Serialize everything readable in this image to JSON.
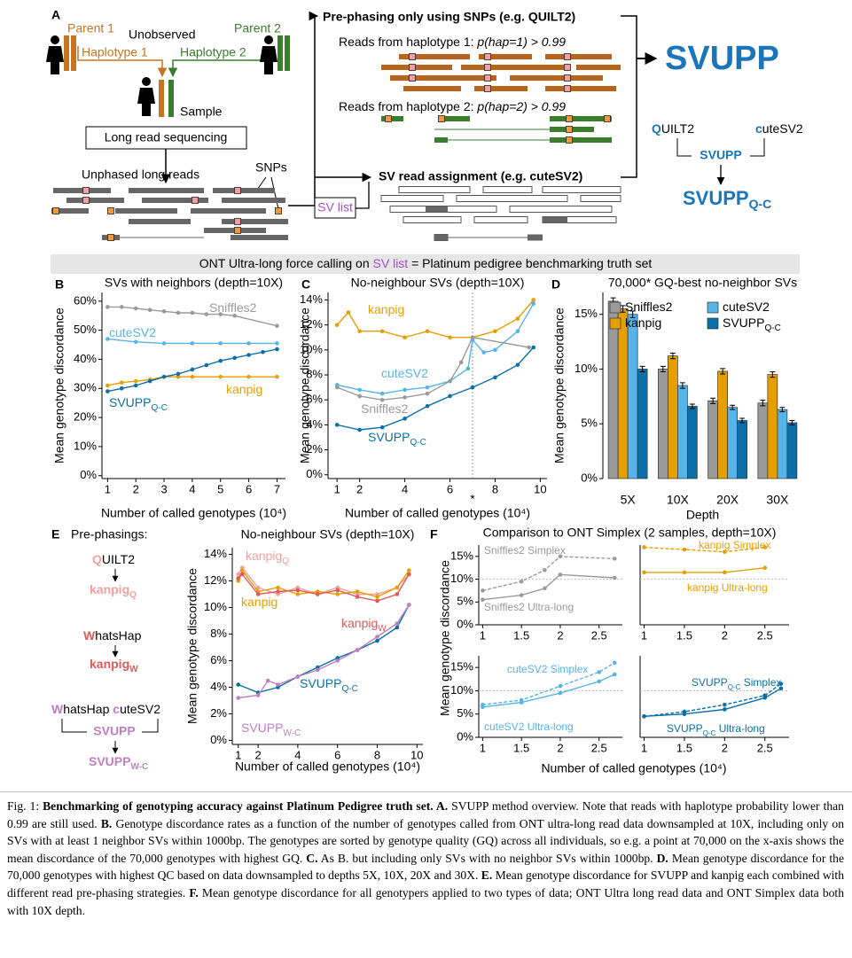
{
  "figure": {
    "panel_a": {
      "letter": "A",
      "parent1": "Parent 1",
      "unobserved": "Unobserved",
      "parent2": "Parent 2",
      "haplotype1": "Haplotype 1",
      "haplotype2": "Haplotype 2",
      "sample": "Sample",
      "sequencing": "Long read sequencing",
      "unphased": "Unphased long reads",
      "snps": "SNPs",
      "sv_list": "SV list",
      "prephasing_title": "Pre-phasing only using SNPs (e.g. QUILT2)",
      "reads_hap1": "Reads from haplotype 1: ",
      "reads_hap1_p": "p(hap=1) > 0.99",
      "reads_hap2": "Reads from haplotype 2: ",
      "reads_hap2_p": "p(hap=2) > 0.99",
      "assignment_title": "SV read assignment (e.g. cuteSV2)",
      "svupp": "SVUPP",
      "quilt_initial": "Q",
      "quilt_rest": "UILT2",
      "cute_initial": "c",
      "cute_rest": "uteSV2",
      "combined": "SVUPP",
      "combined_sub": "Q-C"
    },
    "banner": [
      "ONT Ultra-long force calling on ",
      "SV list",
      " = Platinum pedigree benchmarking truth set"
    ],
    "letters": {
      "B": "B",
      "C": "C",
      "D": "D",
      "E": "E",
      "F": "F"
    },
    "panel_e": {
      "heading": "Pre-phasings:",
      "q_initial": "Q",
      "q_rest": "UILT2",
      "kanpig_q": "kanpig",
      "kanpig_q_sub": "Q",
      "w_initial": "W",
      "w_rest": "hatsHap",
      "kanpig_w": "kanpig",
      "kanpig_w_sub": "W",
      "w2_initial": "W",
      "w2_rest": "hatsHap ",
      "c_initial": "c",
      "c_rest": "uteSV2",
      "svupp": "SVUPP",
      "svupp_wc": "SVUPP",
      "svupp_wc_sub": "W-C"
    }
  },
  "chart_data": [
    {
      "panel": "B",
      "type": "line",
      "title": "SVs with neighbors (depth=10X)",
      "ylabel": "Mean genotype discordance",
      "xlabel": "Number of called genotypes (10⁴)",
      "xlim": [
        0.8,
        7.3
      ],
      "xticks": [
        1,
        2,
        3,
        4,
        5,
        6,
        7
      ],
      "ylim": [
        -1,
        63
      ],
      "yticks": [
        {
          "value": 0,
          "label": "0%"
        },
        {
          "value": 10,
          "label": "10%"
        },
        {
          "value": 20,
          "label": "20%"
        },
        {
          "value": 30,
          "label": "30%"
        },
        {
          "value": 40,
          "label": "40%"
        },
        {
          "value": 50,
          "label": "50%"
        },
        {
          "value": 60,
          "label": "60%"
        }
      ],
      "series": [
        {
          "name": "Sniffles2",
          "color": "#9a9a9a",
          "x": [
            1,
            1.5,
            2,
            2.5,
            3,
            3.5,
            4,
            4.5,
            5,
            5.5,
            7
          ],
          "values": [
            58,
            58,
            57.5,
            57,
            56.5,
            56,
            56,
            55.5,
            55.5,
            55,
            51.5
          ]
        },
        {
          "name": "cuteSV2",
          "color": "#56b4e9",
          "x": [
            1,
            2,
            3,
            4,
            5,
            6,
            7
          ],
          "values": [
            47,
            46,
            45.5,
            45.5,
            45.5,
            45.5,
            45.5
          ]
        },
        {
          "name": "kanpig",
          "color": "#e69f00",
          "x": [
            1,
            1.5,
            2,
            2.5,
            3,
            3.5,
            4,
            5,
            6,
            7
          ],
          "values": [
            31,
            32,
            32.5,
            33,
            34,
            34,
            34,
            34,
            34,
            34
          ]
        },
        {
          "name": "SVUPP",
          "name_sub": "Q-C",
          "color": "#0a6fa8",
          "x": [
            1,
            1.5,
            2,
            2.5,
            3,
            3.5,
            4,
            4.5,
            5,
            5.5,
            6,
            6.5,
            7
          ],
          "values": [
            29,
            30,
            31,
            32.5,
            34,
            35,
            36.5,
            38,
            39.5,
            40.5,
            41.5,
            42.5,
            43.5
          ]
        }
      ]
    },
    {
      "panel": "C",
      "type": "line",
      "title": "No-neighbour SVs (depth=10X)",
      "ylabel": "Mean genotype discordance",
      "xlabel": "Number of called genotypes (10⁴)",
      "xlim": [
        0.6,
        10.3
      ],
      "xticks": [
        1,
        2,
        4,
        6,
        8,
        10
      ],
      "ylim": [
        -0.3,
        14.6
      ],
      "yticks": [
        {
          "value": 0,
          "label": "0%"
        },
        {
          "value": 2,
          "label": "2%"
        },
        {
          "value": 4,
          "label": "4%"
        },
        {
          "value": 6,
          "label": "6%"
        },
        {
          "value": 8,
          "label": "8%"
        },
        {
          "value": 10,
          "label": "10%"
        },
        {
          "value": 12,
          "label": "12%"
        },
        {
          "value": 14,
          "label": "14%"
        }
      ],
      "marker_x": 7,
      "marker_label": "*",
      "series": [
        {
          "name": "kanpig",
          "color": "#e69f00",
          "x": [
            1,
            1.5,
            2,
            3,
            4,
            5,
            6,
            7,
            8,
            9,
            9.7
          ],
          "values": [
            12,
            13,
            11.5,
            11.5,
            11,
            11.5,
            11,
            11,
            11.5,
            12.5,
            14
          ]
        },
        {
          "name": "cuteSV2",
          "color": "#56b4e9",
          "x": [
            1,
            2,
            3,
            4,
            5,
            6,
            6.8,
            7,
            7.5,
            8,
            9,
            9.7
          ],
          "values": [
            7.2,
            6.8,
            6.5,
            6.8,
            7,
            7.5,
            8.5,
            10.8,
            9.8,
            10,
            11.5,
            13.7
          ]
        },
        {
          "name": "Sniffles2",
          "color": "#9a9a9a",
          "x": [
            1,
            2,
            3,
            4,
            5,
            6,
            6.5,
            7,
            9.5
          ],
          "values": [
            7,
            6.3,
            6,
            6.2,
            6.5,
            7.5,
            9,
            11,
            10.2
          ]
        },
        {
          "name": "SVUPP",
          "name_sub": "Q-C",
          "color": "#0a6fa8",
          "x": [
            1,
            2,
            3,
            4,
            5,
            6,
            7,
            8,
            9,
            9.7
          ],
          "values": [
            4,
            3.6,
            3.8,
            4.5,
            5.5,
            6.3,
            7,
            7.8,
            8.8,
            10.2
          ]
        }
      ]
    },
    {
      "panel": "D",
      "type": "bar",
      "title": "70,000* GQ-best no-neighbor SVs",
      "ylabel": "Mean genotype discordance",
      "xlabel": "Depth",
      "categories": [
        "5X",
        "10X",
        "20X",
        "30X"
      ],
      "ylim": [
        0,
        17
      ],
      "yticks": [
        {
          "value": 0,
          "label": "0%"
        },
        {
          "value": 5,
          "label": "5%"
        },
        {
          "value": 10,
          "label": "10%"
        },
        {
          "value": 15,
          "label": "15%"
        }
      ],
      "series": [
        {
          "name": "Sniffles2",
          "color": "#9a9a9a",
          "values": [
            16.2,
            10,
            7.1,
            6.9
          ],
          "errors": [
            0.3,
            0.25,
            0.25,
            0.25
          ]
        },
        {
          "name": "kanpig",
          "color": "#e69f00",
          "values": [
            15.5,
            11.2,
            9.8,
            9.5
          ],
          "errors": [
            0.3,
            0.25,
            0.25,
            0.25
          ]
        },
        {
          "name": "cuteSV2",
          "color": "#56b4e9",
          "values": [
            15,
            8.5,
            6.5,
            6.3
          ],
          "errors": [
            0.3,
            0.25,
            0.2,
            0.2
          ]
        },
        {
          "name": "SVUPP",
          "name_sub": "Q-C",
          "color": "#0a6fa8",
          "values": [
            10,
            6.6,
            5.3,
            5.1
          ],
          "errors": [
            0.25,
            0.2,
            0.2,
            0.2
          ]
        }
      ]
    },
    {
      "panel": "E",
      "type": "line",
      "title": "No-neighbour SVs (depth=10X)",
      "ylabel": "Mean genotype discordance",
      "xlabel": "Number of called genotypes (10⁴)",
      "xlim": [
        0.7,
        10.3
      ],
      "xticks": [
        1,
        2,
        4,
        6,
        8,
        10
      ],
      "ylim": [
        -0.3,
        14.5
      ],
      "yticks": [
        {
          "value": 0,
          "label": "0%"
        },
        {
          "value": 2,
          "label": "2%"
        },
        {
          "value": 4,
          "label": "4%"
        },
        {
          "value": 6,
          "label": "6%"
        },
        {
          "value": 8,
          "label": "8%"
        },
        {
          "value": 10,
          "label": "10%"
        },
        {
          "value": 12,
          "label": "12%"
        },
        {
          "value": 14,
          "label": "14%"
        }
      ],
      "series": [
        {
          "name": "kanpig",
          "name_sub": "Q",
          "color": "#f2a0a0",
          "x": [
            1,
            1.2,
            2,
            3,
            4,
            5,
            6,
            7,
            8,
            9,
            9.6
          ],
          "values": [
            12.5,
            13,
            11.5,
            11,
            11.5,
            11,
            11.5,
            11,
            11,
            11.5,
            12.5
          ]
        },
        {
          "name": "kanpig",
          "color": "#e69f00",
          "x": [
            1,
            1.2,
            2,
            3,
            4,
            5,
            6,
            7,
            8,
            9,
            9.6
          ],
          "values": [
            12,
            12.8,
            11.2,
            11.5,
            11,
            11.2,
            11,
            11.2,
            10.8,
            11.5,
            12.8
          ]
        },
        {
          "name": "kanpig",
          "name_sub": "W",
          "color": "#e05a5a",
          "x": [
            1,
            1.2,
            2,
            3,
            4,
            5,
            6,
            7,
            8,
            9,
            9.6
          ],
          "values": [
            12.2,
            12.5,
            11,
            11.2,
            11.3,
            11,
            11.3,
            10.8,
            10.5,
            11,
            12.5
          ]
        },
        {
          "name": "SVUPP",
          "name_sub": "Q-C",
          "color": "#0a6fa8",
          "x": [
            1,
            2,
            3,
            4,
            5,
            6,
            7,
            8,
            9,
            9.6
          ],
          "values": [
            4.2,
            3.6,
            4,
            4.8,
            5.5,
            6.2,
            6.8,
            7.5,
            8.5,
            10.2
          ]
        },
        {
          "name": "SVUPP",
          "name_sub": "W-C",
          "color": "#c080c0",
          "x": [
            1,
            2,
            2.5,
            3,
            4,
            5,
            6,
            7,
            8,
            9,
            9.6
          ],
          "values": [
            3.2,
            3.4,
            4.5,
            4.2,
            4.8,
            5.3,
            6,
            6.8,
            7.8,
            8.8,
            10.2
          ]
        }
      ]
    },
    {
      "panel": "F",
      "type": "line",
      "title": "Comparison to ONT Simplex (2 samples, depth=10X)",
      "ylabel": "Mean genotype discordance",
      "xlim": [
        0.95,
        2.8
      ],
      "xticks": [
        1,
        1.5,
        2,
        2.5
      ],
      "ylim": [
        0,
        17.5
      ],
      "yticks": [
        {
          "value": 0,
          "label": "0%"
        },
        {
          "value": 5,
          "label": "5%"
        },
        {
          "value": 10,
          "label": "10%"
        },
        {
          "value": 15,
          "label": "15%"
        }
      ],
      "reference_line": 10,
      "series": [
        {
          "name": "Sniffles2 Simplex",
          "color": "#9a9a9a",
          "dash": true,
          "x": [
            1,
            1.5,
            1.8,
            2,
            2.7
          ],
          "values": [
            7.5,
            9.5,
            12,
            15,
            14.5
          ]
        },
        {
          "name": "Sniffles2 Ultra-long",
          "color": "#9a9a9a",
          "x": [
            1,
            1.5,
            1.8,
            2,
            2.7
          ],
          "values": [
            5.5,
            6.5,
            8,
            11,
            10.3
          ]
        }
      ]
    },
    {
      "type": "line",
      "xlim": [
        0.95,
        2.8
      ],
      "xticks": [
        1,
        1.5,
        2,
        2.5
      ],
      "ylim": [
        0,
        17.5
      ],
      "reference_line": 10,
      "series": [
        {
          "name": "kanpig Simplex",
          "color": "#e69f00",
          "dash": true,
          "x": [
            1,
            1.5,
            2,
            2.5
          ],
          "values": [
            17,
            16.5,
            16,
            17
          ]
        },
        {
          "name": "kanpig Ultra-long",
          "color": "#e69f00",
          "x": [
            1,
            1.5,
            2,
            2.5
          ],
          "values": [
            11.5,
            11.5,
            11.5,
            12.5
          ]
        }
      ]
    },
    {
      "type": "line",
      "xlabel": "Number of called genotypes (10⁴)",
      "xlim": [
        0.95,
        2.8
      ],
      "xticks": [
        1,
        1.5,
        2,
        2.5
      ],
      "ylim": [
        0,
        17.5
      ],
      "yticks": [
        {
          "value": 0,
          "label": "0%"
        },
        {
          "value": 5,
          "label": "5%"
        },
        {
          "value": 10,
          "label": "10%"
        },
        {
          "value": 15,
          "label": "15%"
        }
      ],
      "reference_line": 10,
      "series": [
        {
          "name": "cuteSV2 Simplex",
          "color": "#56b4e9",
          "dash": true,
          "x": [
            1,
            1.5,
            2,
            2.5,
            2.7
          ],
          "values": [
            7,
            8,
            11,
            14,
            16
          ]
        },
        {
          "name": "cuteSV2 Ultra-long",
          "color": "#56b4e9",
          "x": [
            1,
            1.5,
            2,
            2.5,
            2.7
          ],
          "values": [
            6.5,
            7.5,
            9.5,
            12,
            13.5
          ]
        }
      ]
    },
    {
      "type": "line",
      "xlim": [
        0.95,
        2.8
      ],
      "xticks": [
        1,
        1.5,
        2,
        2.5
      ],
      "ylim": [
        0,
        17.5
      ],
      "reference_line": 10,
      "series": [
        {
          "name": "SVUPP",
          "name_sub": "Q-C",
          "name_suffix": " Simplex",
          "color": "#0a6fa8",
          "dash": true,
          "x": [
            1,
            1.5,
            2,
            2.5,
            2.7
          ],
          "values": [
            4.5,
            5.5,
            7,
            9,
            11.5
          ]
        },
        {
          "name": "SVUPP",
          "name_sub": "Q-C",
          "name_suffix": " Ultra-long",
          "color": "#0a6fa8",
          "x": [
            1,
            1.5,
            2,
            2.5,
            2.7
          ],
          "values": [
            4.5,
            5,
            6,
            8.5,
            10.5
          ]
        }
      ]
    }
  ],
  "caption": [
    {
      "text": "Fig. 1: ",
      "bold": false
    },
    {
      "text": "Benchmarking of genotyping accuracy against Platinum Pedigree truth set. A.",
      "bold": true
    },
    {
      "text": " SVUPP method overview. Note that reads with haplotype probability lower than 0.99 are still used. ",
      "bold": false
    },
    {
      "text": "B.",
      "bold": true
    },
    {
      "text": " Genotype discordance rates as a function of the number of genotypes called from ONT ultra-long read data downsampled at 10X, including only on SVs with at least 1 neighbor SVs within 1000bp. The genotypes are sorted by genotype quality (GQ) across all individuals, so e.g. a point at 70,000 on the x-axis shows the mean discordance of the 70,000 genotypes with highest GQ. ",
      "bold": false
    },
    {
      "text": "C.",
      "bold": true
    },
    {
      "text": " As B. but including only SVs with no neighbor SVs within 1000bp. ",
      "bold": false
    },
    {
      "text": "D.",
      "bold": true
    },
    {
      "text": " Mean genotype discordance for the 70,000 genotypes with highest QC based on data downsampled to depths 5X, 10X, 20X and 30X. ",
      "bold": false
    },
    {
      "text": "E.",
      "bold": true
    },
    {
      "text": " Mean genotype discordance for SVUPP and kanpig each combined with different read pre-phasing strategies. ",
      "bold": false
    },
    {
      "text": "F.",
      "bold": true
    },
    {
      "text": " Mean genotype discordance for all genotypers applied to two types of data; ONT Ultra long read data and ONT Simplex data both with 10X depth.",
      "bold": false
    }
  ]
}
